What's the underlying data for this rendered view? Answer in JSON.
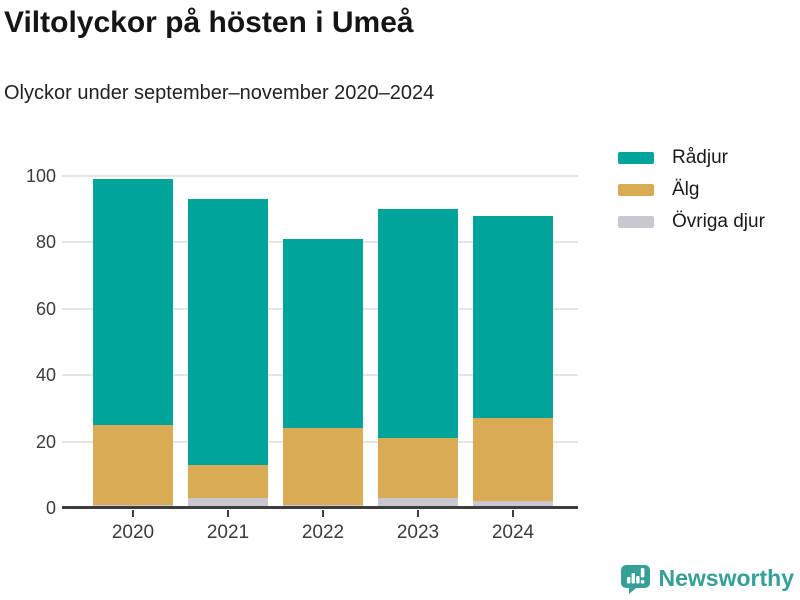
{
  "chart_data": {
    "type": "bar",
    "stacked": true,
    "title": "Viltolyckor på hösten i Umeå",
    "subtitle": "Olyckor under september–november 2020–2024",
    "categories": [
      "2020",
      "2021",
      "2022",
      "2023",
      "2024"
    ],
    "series": [
      {
        "name": "Rådjur",
        "color": "#00a49a",
        "values": [
          74,
          80,
          57,
          69,
          61
        ]
      },
      {
        "name": "Älg",
        "color": "#d9ab55",
        "values": [
          24,
          10,
          23,
          18,
          25
        ]
      },
      {
        "name": "Övriga djur",
        "color": "#c9c7d0",
        "values": [
          1,
          3,
          1,
          3,
          2
        ]
      }
    ],
    "totals": [
      99,
      93,
      81,
      90,
      88
    ],
    "stack_order_bottom_to_top": [
      "Övriga djur",
      "Älg",
      "Rådjur"
    ],
    "yticks": [
      0,
      20,
      40,
      60,
      80,
      100
    ],
    "ylim": [
      0,
      100
    ],
    "xlabel": "",
    "ylabel": "",
    "grid": true,
    "grid_color": "#e5e5e6",
    "axis_color": "#3d3d3d",
    "legend_position": "top-right"
  },
  "footer": {
    "brand": "Newsworthy",
    "brand_color": "#35a098"
  }
}
